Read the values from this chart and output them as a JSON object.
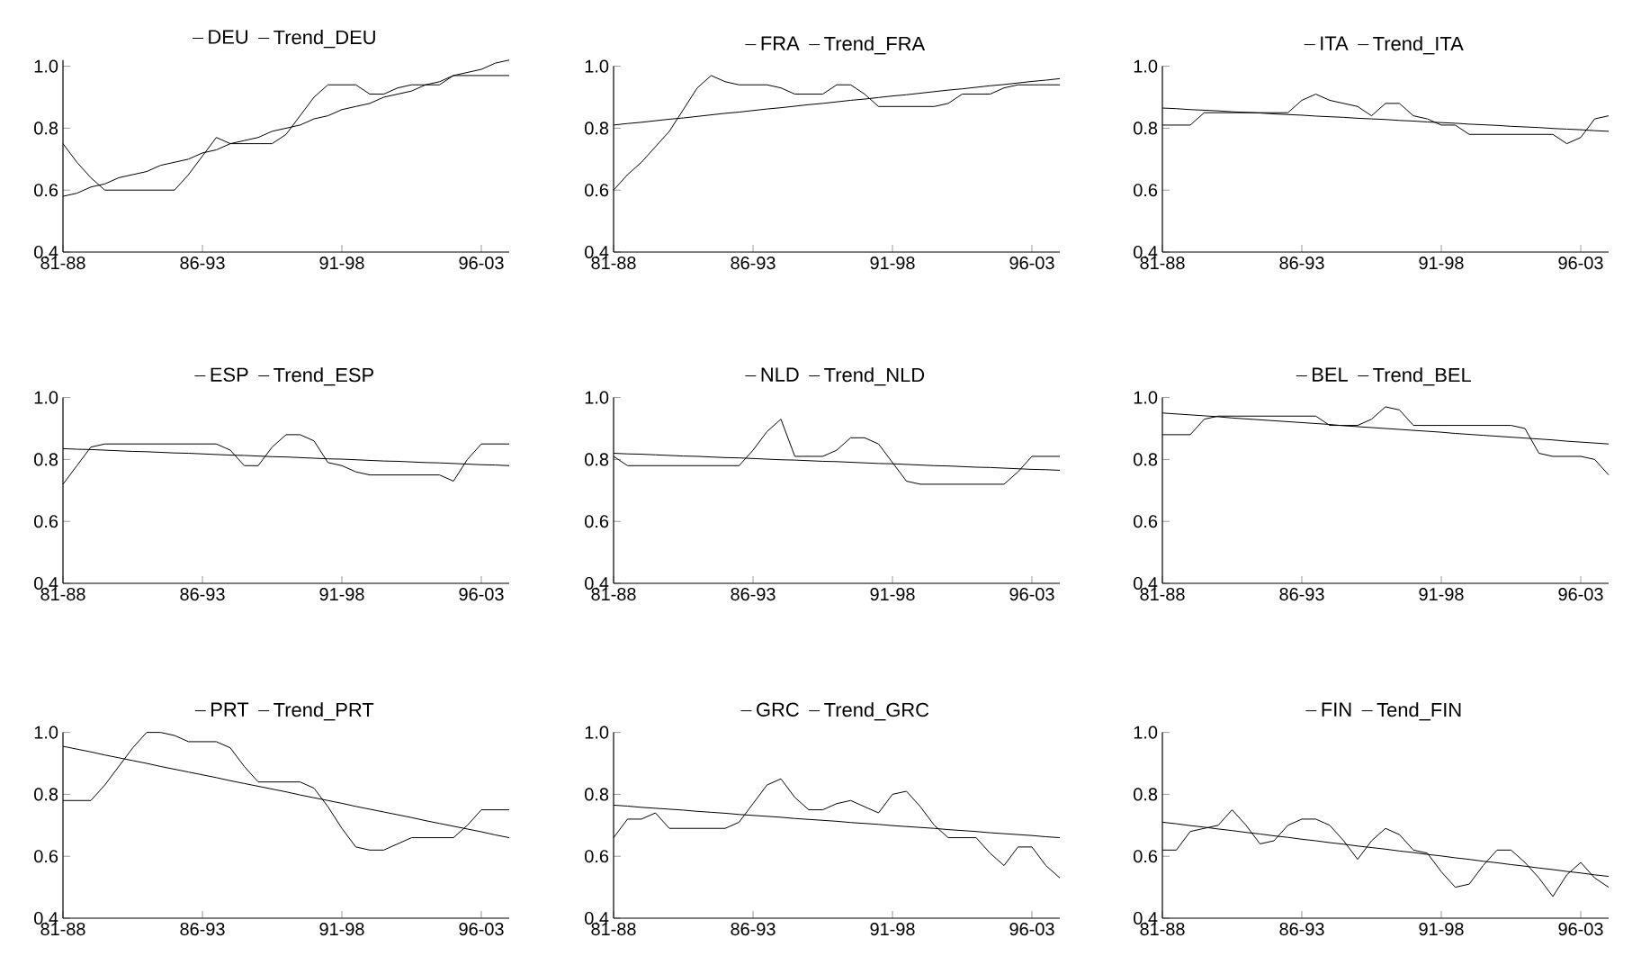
{
  "chart_data": [
    {
      "type": "line",
      "ylim": [
        0.4,
        1.02
      ],
      "legend": "top",
      "categories": [
        "81-88",
        null,
        null,
        null,
        null,
        null,
        null,
        null,
        null,
        null,
        "86-93",
        null,
        null,
        null,
        null,
        null,
        null,
        null,
        null,
        null,
        "91-98",
        null,
        null,
        null,
        null,
        null,
        null,
        null,
        null,
        null,
        "96-03",
        null,
        null
      ],
      "yticks": [
        {
          "value": 0.4,
          "label": "0.4"
        },
        {
          "value": 0.6,
          "label": "0.6"
        },
        {
          "value": 0.8,
          "label": "0.8"
        },
        {
          "value": 1.0,
          "label": "1.0"
        }
      ],
      "series": [
        {
          "name": "DEU",
          "color": "#000000",
          "values": [
            0.75,
            0.69,
            0.64,
            0.6,
            0.6,
            0.6,
            0.6,
            0.6,
            0.6,
            0.65,
            0.71,
            0.77,
            0.75,
            0.75,
            0.75,
            0.75,
            0.78,
            0.84,
            0.9,
            0.94,
            0.94,
            0.94,
            0.91,
            0.91,
            0.93,
            0.94,
            0.94,
            0.94,
            0.97,
            0.97,
            0.97,
            0.97,
            0.97
          ]
        },
        {
          "name": "Trend_DEU",
          "color": "#000000",
          "values": [
            0.58,
            0.59,
            0.61,
            0.62,
            0.64,
            0.65,
            0.66,
            0.68,
            0.69,
            0.7,
            0.72,
            0.73,
            0.75,
            0.76,
            0.77,
            0.79,
            0.8,
            0.81,
            0.83,
            0.84,
            0.86,
            0.87,
            0.88,
            0.9,
            0.91,
            0.92,
            0.94,
            0.95,
            0.97,
            0.98,
            0.99,
            1.01,
            1.02
          ]
        }
      ]
    },
    {
      "type": "line",
      "ylim": [
        0.4,
        1.0
      ],
      "legend": "top",
      "categories": [
        "81-88",
        null,
        null,
        null,
        null,
        null,
        null,
        null,
        null,
        null,
        "86-93",
        null,
        null,
        null,
        null,
        null,
        null,
        null,
        null,
        null,
        "91-98",
        null,
        null,
        null,
        null,
        null,
        null,
        null,
        null,
        null,
        "96-03",
        null,
        null
      ],
      "yticks": [
        {
          "value": 0.4,
          "label": "0.4"
        },
        {
          "value": 0.6,
          "label": "0.6"
        },
        {
          "value": 0.8,
          "label": "0.8"
        },
        {
          "value": 1.0,
          "label": "1.0"
        }
      ],
      "series": [
        {
          "name": "FRA",
          "color": "#000000",
          "values": [
            0.6,
            0.65,
            0.69,
            0.74,
            0.79,
            0.86,
            0.93,
            0.97,
            0.95,
            0.94,
            0.94,
            0.94,
            0.93,
            0.91,
            0.91,
            0.91,
            0.94,
            0.94,
            0.91,
            0.87,
            0.87,
            0.87,
            0.87,
            0.87,
            0.88,
            0.91,
            0.91,
            0.91,
            0.93,
            0.94,
            0.94,
            0.94,
            0.94
          ]
        },
        {
          "name": "Trend_FRA",
          "color": "#000000",
          "values": [
            0.81,
            0.815,
            0.819,
            0.824,
            0.829,
            0.833,
            0.838,
            0.843,
            0.848,
            0.852,
            0.857,
            0.862,
            0.866,
            0.871,
            0.876,
            0.88,
            0.885,
            0.89,
            0.894,
            0.899,
            0.904,
            0.908,
            0.913,
            0.918,
            0.923,
            0.927,
            0.932,
            0.937,
            0.941,
            0.946,
            0.951,
            0.955,
            0.96
          ]
        }
      ]
    },
    {
      "type": "line",
      "ylim": [
        0.4,
        1.0
      ],
      "legend": "top",
      "categories": [
        "81-88",
        null,
        null,
        null,
        null,
        null,
        null,
        null,
        null,
        null,
        "86-93",
        null,
        null,
        null,
        null,
        null,
        null,
        null,
        null,
        null,
        "91-98",
        null,
        null,
        null,
        null,
        null,
        null,
        null,
        null,
        null,
        "96-03",
        null,
        null
      ],
      "yticks": [
        {
          "value": 0.4,
          "label": "0.4"
        },
        {
          "value": 0.6,
          "label": "0.6"
        },
        {
          "value": 0.8,
          "label": "0.8"
        },
        {
          "value": 1.0,
          "label": "1.0"
        }
      ],
      "series": [
        {
          "name": "ITA",
          "color": "#000000",
          "values": [
            0.81,
            0.81,
            0.81,
            0.85,
            0.85,
            0.85,
            0.85,
            0.85,
            0.85,
            0.85,
            0.89,
            0.91,
            0.89,
            0.88,
            0.87,
            0.84,
            0.88,
            0.88,
            0.84,
            0.83,
            0.81,
            0.81,
            0.78,
            0.78,
            0.78,
            0.78,
            0.78,
            0.78,
            0.78,
            0.75,
            0.77,
            0.83,
            0.84
          ]
        },
        {
          "name": "Trend_ITA",
          "color": "#000000",
          "values": [
            0.865,
            0.863,
            0.86,
            0.858,
            0.856,
            0.853,
            0.851,
            0.849,
            0.846,
            0.844,
            0.842,
            0.839,
            0.837,
            0.835,
            0.832,
            0.83,
            0.828,
            0.825,
            0.823,
            0.82,
            0.818,
            0.816,
            0.813,
            0.811,
            0.809,
            0.806,
            0.804,
            0.802,
            0.799,
            0.797,
            0.795,
            0.792,
            0.79
          ]
        }
      ]
    },
    {
      "type": "line",
      "ylim": [
        0.4,
        1.0
      ],
      "legend": "top",
      "categories": [
        "81-88",
        null,
        null,
        null,
        null,
        null,
        null,
        null,
        null,
        null,
        "86-93",
        null,
        null,
        null,
        null,
        null,
        null,
        null,
        null,
        null,
        "91-98",
        null,
        null,
        null,
        null,
        null,
        null,
        null,
        null,
        null,
        "96-03",
        null,
        null
      ],
      "yticks": [
        {
          "value": 0.4,
          "label": "0.4"
        },
        {
          "value": 0.6,
          "label": "0.6"
        },
        {
          "value": 0.8,
          "label": "0.8"
        },
        {
          "value": 1.0,
          "label": "1.0"
        }
      ],
      "series": [
        {
          "name": "ESP",
          "color": "#000000",
          "values": [
            0.72,
            0.78,
            0.84,
            0.85,
            0.85,
            0.85,
            0.85,
            0.85,
            0.85,
            0.85,
            0.85,
            0.85,
            0.83,
            0.78,
            0.78,
            0.84,
            0.88,
            0.88,
            0.86,
            0.79,
            0.78,
            0.76,
            0.75,
            0.75,
            0.75,
            0.75,
            0.75,
            0.75,
            0.73,
            0.8,
            0.85,
            0.85,
            0.85
          ]
        },
        {
          "name": "Trend_ESP",
          "color": "#000000",
          "values": [
            0.835,
            0.833,
            0.832,
            0.83,
            0.828,
            0.826,
            0.825,
            0.823,
            0.821,
            0.82,
            0.818,
            0.816,
            0.814,
            0.813,
            0.811,
            0.809,
            0.808,
            0.806,
            0.804,
            0.802,
            0.801,
            0.799,
            0.797,
            0.795,
            0.794,
            0.792,
            0.79,
            0.789,
            0.787,
            0.785,
            0.783,
            0.782,
            0.78
          ]
        }
      ]
    },
    {
      "type": "line",
      "ylim": [
        0.4,
        1.0
      ],
      "legend": "top",
      "categories": [
        "81-88",
        null,
        null,
        null,
        null,
        null,
        null,
        null,
        null,
        null,
        "86-93",
        null,
        null,
        null,
        null,
        null,
        null,
        null,
        null,
        null,
        "91-98",
        null,
        null,
        null,
        null,
        null,
        null,
        null,
        null,
        null,
        "96-03",
        null,
        null
      ],
      "yticks": [
        {
          "value": 0.4,
          "label": "0.4"
        },
        {
          "value": 0.6,
          "label": "0.6"
        },
        {
          "value": 0.8,
          "label": "0.8"
        },
        {
          "value": 1.0,
          "label": "1.0"
        }
      ],
      "series": [
        {
          "name": "NLD",
          "color": "#000000",
          "values": [
            0.81,
            0.78,
            0.78,
            0.78,
            0.78,
            0.78,
            0.78,
            0.78,
            0.78,
            0.78,
            0.83,
            0.89,
            0.93,
            0.81,
            0.81,
            0.81,
            0.83,
            0.87,
            0.87,
            0.85,
            0.79,
            0.73,
            0.72,
            0.72,
            0.72,
            0.72,
            0.72,
            0.72,
            0.72,
            0.76,
            0.81,
            0.81,
            0.81
          ]
        },
        {
          "name": "Trend_NLD",
          "color": "#000000",
          "values": [
            0.82,
            0.818,
            0.817,
            0.815,
            0.813,
            0.811,
            0.81,
            0.808,
            0.806,
            0.805,
            0.803,
            0.801,
            0.799,
            0.798,
            0.796,
            0.794,
            0.793,
            0.791,
            0.789,
            0.787,
            0.786,
            0.784,
            0.782,
            0.78,
            0.779,
            0.777,
            0.775,
            0.774,
            0.772,
            0.77,
            0.768,
            0.767,
            0.765
          ]
        }
      ]
    },
    {
      "type": "line",
      "ylim": [
        0.4,
        1.0
      ],
      "legend": "top",
      "categories": [
        "81-88",
        null,
        null,
        null,
        null,
        null,
        null,
        null,
        null,
        null,
        "86-93",
        null,
        null,
        null,
        null,
        null,
        null,
        null,
        null,
        null,
        "91-98",
        null,
        null,
        null,
        null,
        null,
        null,
        null,
        null,
        null,
        "96-03",
        null,
        null
      ],
      "yticks": [
        {
          "value": 0.4,
          "label": "0.4"
        },
        {
          "value": 0.6,
          "label": "0.6"
        },
        {
          "value": 0.8,
          "label": "0.8"
        },
        {
          "value": 1.0,
          "label": "1.0"
        }
      ],
      "series": [
        {
          "name": "BEL",
          "color": "#000000",
          "values": [
            0.88,
            0.88,
            0.88,
            0.93,
            0.94,
            0.94,
            0.94,
            0.94,
            0.94,
            0.94,
            0.94,
            0.94,
            0.91,
            0.91,
            0.91,
            0.93,
            0.97,
            0.96,
            0.91,
            0.91,
            0.91,
            0.91,
            0.91,
            0.91,
            0.91,
            0.91,
            0.9,
            0.82,
            0.81,
            0.81,
            0.81,
            0.8,
            0.75
          ]
        },
        {
          "name": "Trend_BEL",
          "color": "#000000",
          "values": [
            0.95,
            0.947,
            0.944,
            0.941,
            0.938,
            0.934,
            0.931,
            0.928,
            0.925,
            0.922,
            0.919,
            0.916,
            0.913,
            0.909,
            0.906,
            0.903,
            0.9,
            0.897,
            0.894,
            0.891,
            0.888,
            0.884,
            0.881,
            0.878,
            0.875,
            0.872,
            0.869,
            0.866,
            0.863,
            0.859,
            0.856,
            0.853,
            0.85
          ]
        }
      ]
    },
    {
      "type": "line",
      "ylim": [
        0.4,
        1.0
      ],
      "legend": "top",
      "categories": [
        "81-88",
        null,
        null,
        null,
        null,
        null,
        null,
        null,
        null,
        null,
        "86-93",
        null,
        null,
        null,
        null,
        null,
        null,
        null,
        null,
        null,
        "91-98",
        null,
        null,
        null,
        null,
        null,
        null,
        null,
        null,
        null,
        "96-03",
        null,
        null
      ],
      "yticks": [
        {
          "value": 0.4,
          "label": "0.4"
        },
        {
          "value": 0.6,
          "label": "0.6"
        },
        {
          "value": 0.8,
          "label": "0.8"
        },
        {
          "value": 1.0,
          "label": "1.0"
        }
      ],
      "series": [
        {
          "name": "PRT",
          "color": "#000000",
          "values": [
            0.78,
            0.78,
            0.78,
            0.83,
            0.89,
            0.95,
            1.0,
            1.0,
            0.99,
            0.97,
            0.97,
            0.97,
            0.95,
            0.89,
            0.84,
            0.84,
            0.84,
            0.84,
            0.82,
            0.76,
            0.69,
            0.63,
            0.62,
            0.62,
            0.64,
            0.66,
            0.66,
            0.66,
            0.66,
            0.7,
            0.75,
            0.75,
            0.75
          ]
        },
        {
          "name": "Trend_PRT",
          "color": "#000000",
          "values": [
            0.955,
            0.946,
            0.937,
            0.927,
            0.918,
            0.909,
            0.9,
            0.89,
            0.881,
            0.872,
            0.863,
            0.854,
            0.844,
            0.835,
            0.826,
            0.817,
            0.808,
            0.798,
            0.789,
            0.78,
            0.771,
            0.761,
            0.752,
            0.743,
            0.734,
            0.725,
            0.715,
            0.706,
            0.697,
            0.688,
            0.679,
            0.669,
            0.66
          ]
        }
      ]
    },
    {
      "type": "line",
      "ylim": [
        0.4,
        1.0
      ],
      "legend": "top",
      "categories": [
        "81-88",
        null,
        null,
        null,
        null,
        null,
        null,
        null,
        null,
        null,
        "86-93",
        null,
        null,
        null,
        null,
        null,
        null,
        null,
        null,
        null,
        "91-98",
        null,
        null,
        null,
        null,
        null,
        null,
        null,
        null,
        null,
        "96-03",
        null,
        null
      ],
      "yticks": [
        {
          "value": 0.4,
          "label": "0.4"
        },
        {
          "value": 0.6,
          "label": "0.6"
        },
        {
          "value": 0.8,
          "label": "0.8"
        },
        {
          "value": 1.0,
          "label": "1.0"
        }
      ],
      "series": [
        {
          "name": "GRC",
          "color": "#000000",
          "values": [
            0.66,
            0.72,
            0.72,
            0.74,
            0.69,
            0.69,
            0.69,
            0.69,
            0.69,
            0.71,
            0.77,
            0.83,
            0.85,
            0.79,
            0.75,
            0.75,
            0.77,
            0.78,
            0.76,
            0.74,
            0.8,
            0.81,
            0.76,
            0.7,
            0.66,
            0.66,
            0.66,
            0.61,
            0.57,
            0.63,
            0.63,
            0.57,
            0.53
          ]
        },
        {
          "name": "Trend_GRC",
          "color": "#000000",
          "values": [
            0.765,
            0.762,
            0.758,
            0.755,
            0.752,
            0.749,
            0.745,
            0.742,
            0.739,
            0.735,
            0.732,
            0.729,
            0.726,
            0.722,
            0.719,
            0.716,
            0.713,
            0.709,
            0.706,
            0.703,
            0.699,
            0.696,
            0.693,
            0.69,
            0.686,
            0.683,
            0.68,
            0.676,
            0.673,
            0.67,
            0.667,
            0.663,
            0.66
          ]
        }
      ]
    },
    {
      "type": "line",
      "ylim": [
        0.4,
        1.0
      ],
      "legend": "top",
      "categories": [
        "81-88",
        null,
        null,
        null,
        null,
        null,
        null,
        null,
        null,
        null,
        "86-93",
        null,
        null,
        null,
        null,
        null,
        null,
        null,
        null,
        null,
        "91-98",
        null,
        null,
        null,
        null,
        null,
        null,
        null,
        null,
        null,
        "96-03",
        null,
        null
      ],
      "yticks": [
        {
          "value": 0.4,
          "label": "0.4"
        },
        {
          "value": 0.6,
          "label": "0.6"
        },
        {
          "value": 0.8,
          "label": "0.8"
        },
        {
          "value": 1.0,
          "label": "1.0"
        }
      ],
      "series": [
        {
          "name": "FIN",
          "color": "#000000",
          "values": [
            0.62,
            0.62,
            0.68,
            0.69,
            0.7,
            0.75,
            0.7,
            0.64,
            0.65,
            0.7,
            0.72,
            0.72,
            0.7,
            0.65,
            0.59,
            0.65,
            0.69,
            0.67,
            0.62,
            0.61,
            0.55,
            0.5,
            0.51,
            0.57,
            0.62,
            0.62,
            0.58,
            0.53,
            0.47,
            0.54,
            0.58,
            0.53,
            0.5
          ]
        },
        {
          "name": "Tend_FIN",
          "color": "#000000",
          "values": [
            0.71,
            0.705,
            0.699,
            0.694,
            0.688,
            0.683,
            0.677,
            0.672,
            0.666,
            0.661,
            0.655,
            0.65,
            0.644,
            0.639,
            0.633,
            0.628,
            0.623,
            0.617,
            0.612,
            0.606,
            0.601,
            0.595,
            0.59,
            0.584,
            0.579,
            0.573,
            0.568,
            0.562,
            0.557,
            0.551,
            0.546,
            0.54,
            0.535
          ]
        }
      ]
    }
  ]
}
